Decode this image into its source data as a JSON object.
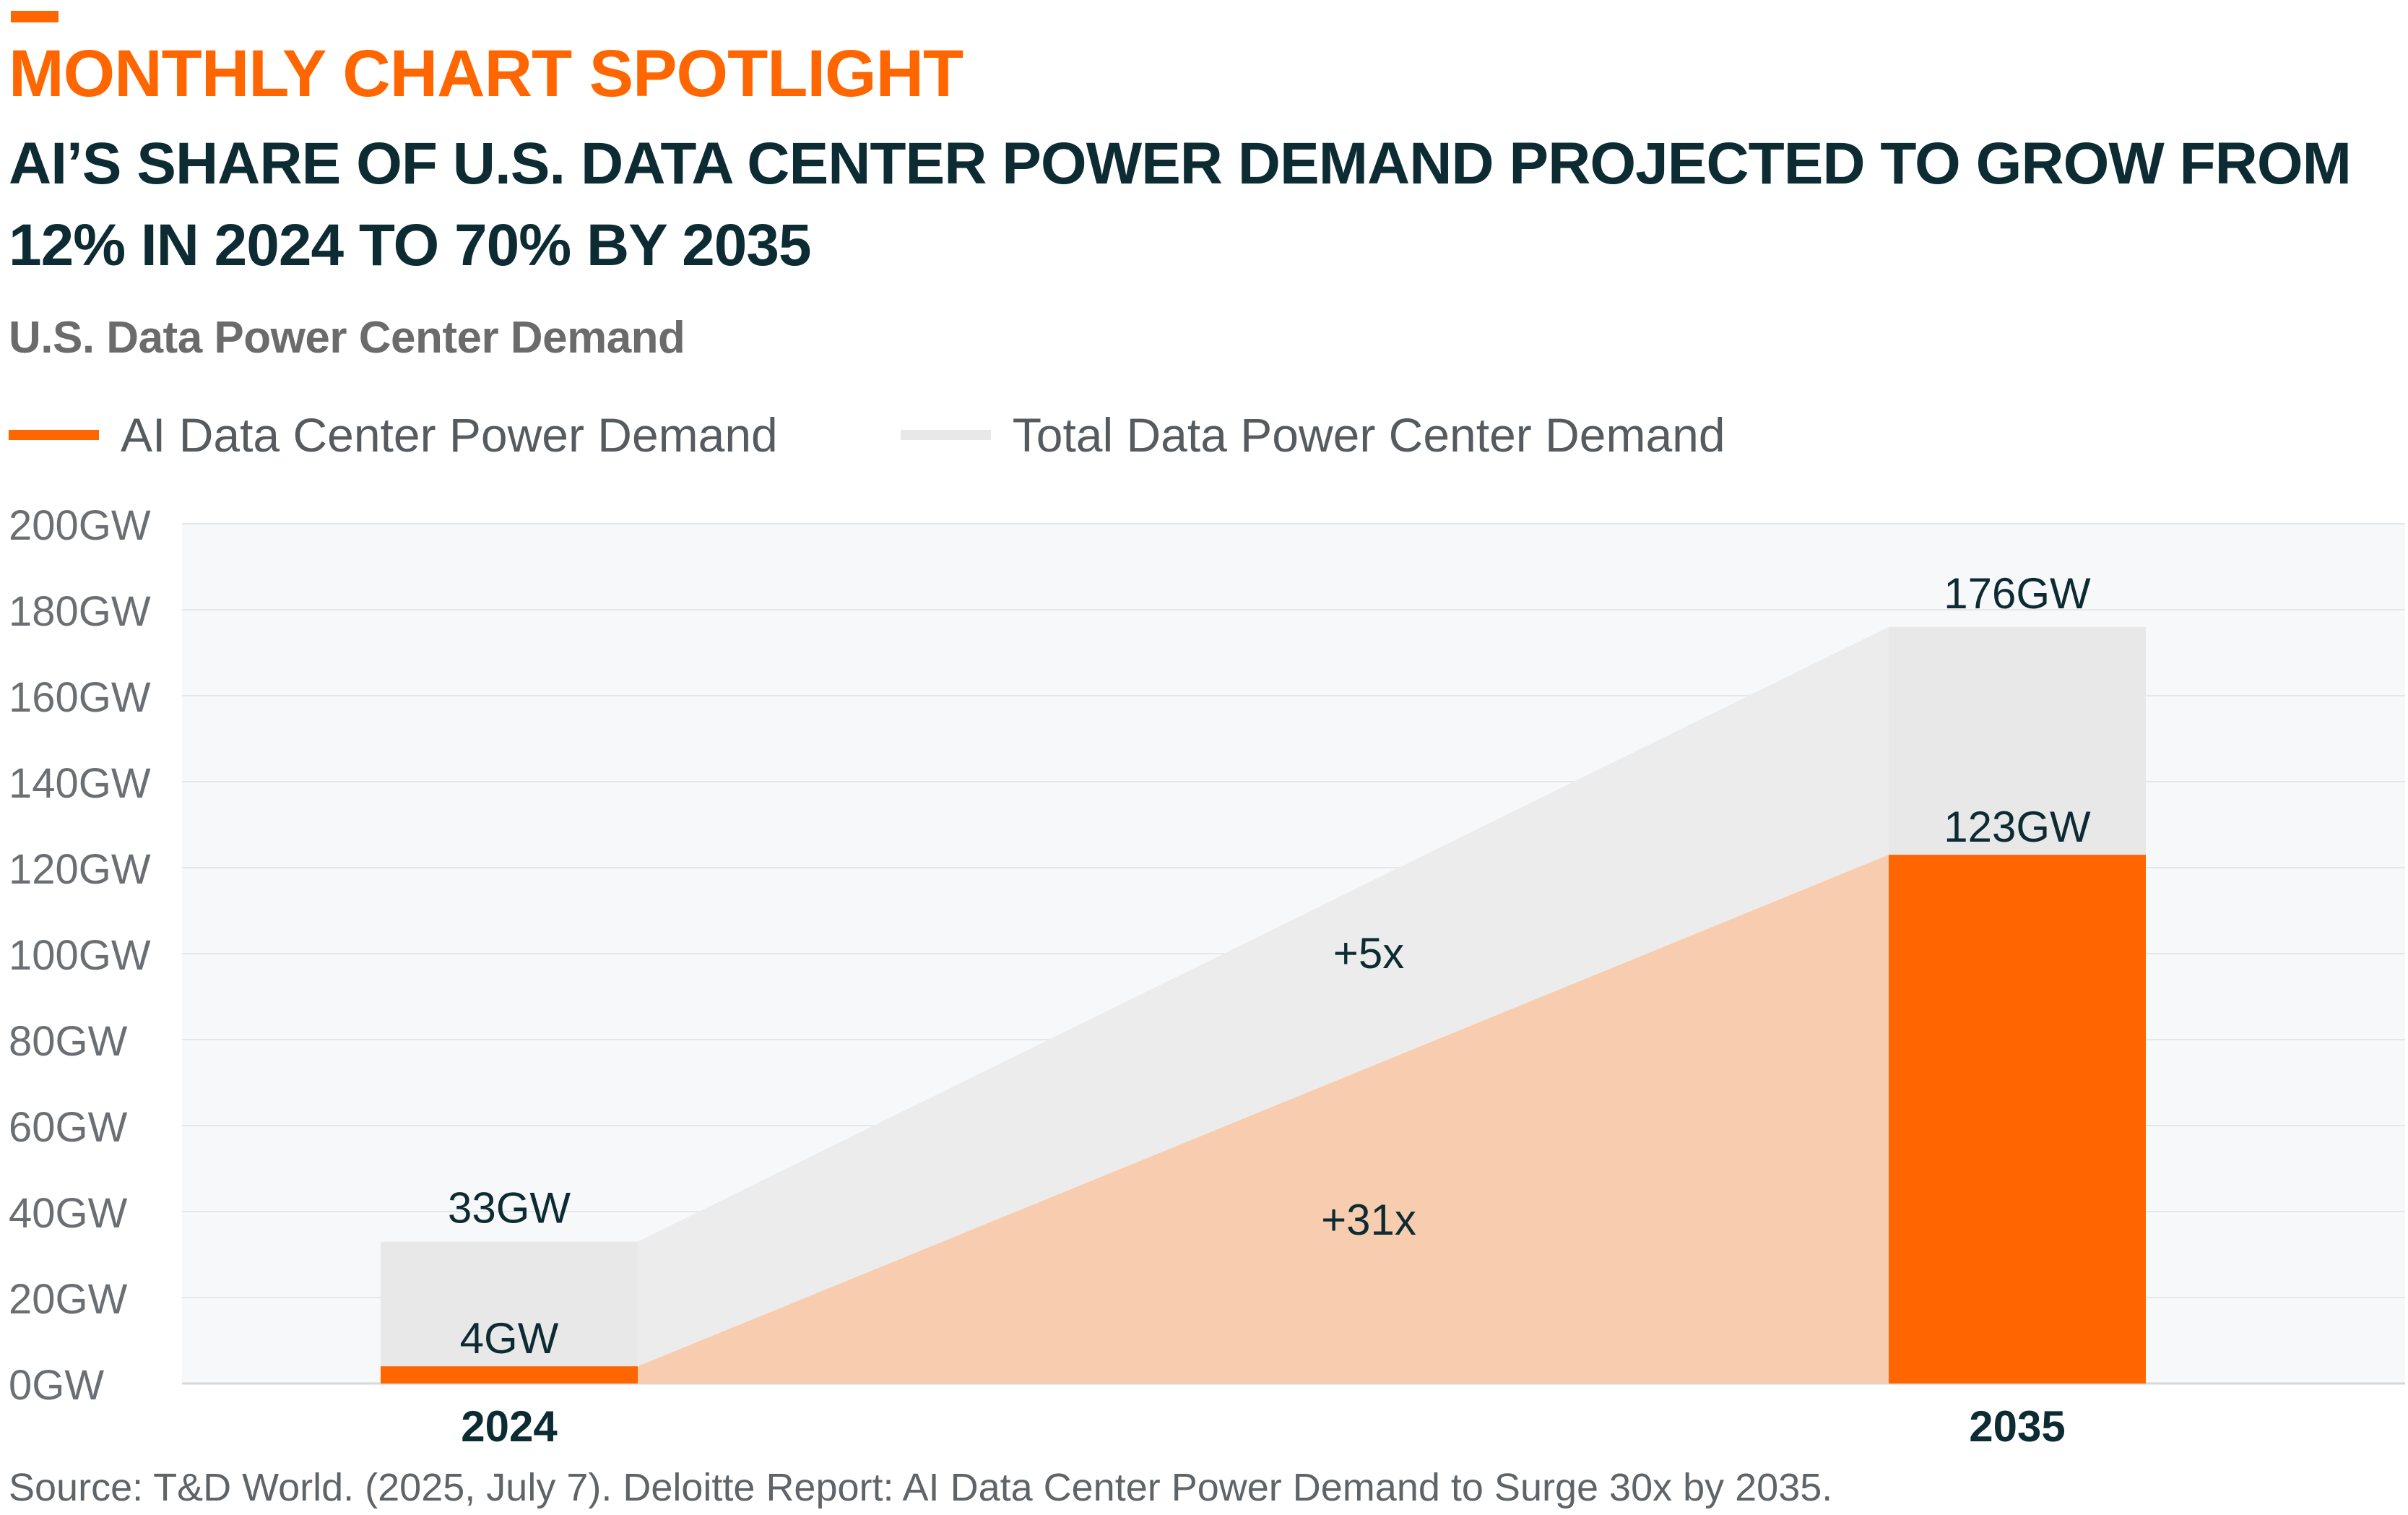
{
  "header": {
    "spotlight": "MONTHLY CHART SPOTLIGHT",
    "headline": "AI’S SHARE OF U.S. DATA CENTER POWER DEMAND PROJECTED TO GROW FROM 12% IN 2024 TO 70% BY 2035",
    "subtitle": "U.S. Data Power Center Demand"
  },
  "footer": {
    "source": "Source: T&D World. (2025, July 7). Deloitte Report: AI Data Center Power Demand to Surge 30x by 2035."
  },
  "colors": {
    "accent": "#ff6600",
    "headline": "#0d2b33",
    "total_bar": "#e8e8e8",
    "total_band": "#ececec",
    "ai_band": "#f8cdaf",
    "plot_bg": "#f7f8fa"
  },
  "chart_data": {
    "type": "bar",
    "title": "U.S. Data Power Center Demand",
    "categories": [
      "2024",
      "2035"
    ],
    "series": [
      {
        "name": "AI Data Center Power Demand",
        "values": [
          4,
          123
        ],
        "labels": [
          "4GW",
          "123GW"
        ],
        "color": "#ff6600"
      },
      {
        "name": "Total Data Power Center Demand",
        "values": [
          33,
          176
        ],
        "labels": [
          "33GW",
          "176GW"
        ],
        "color": "#e8e8e8"
      }
    ],
    "yticks": [
      "0GW",
      "20GW",
      "40GW",
      "60GW",
      "80GW",
      "100GW",
      "120GW",
      "140GW",
      "160GW",
      "180GW",
      "200GW"
    ],
    "ylim": [
      0,
      200
    ],
    "grid": true,
    "legend": "top-left",
    "annotations": [
      {
        "text": "+5x",
        "band": "total",
        "y": 100
      },
      {
        "text": "+31x",
        "band": "ai",
        "y": 38
      }
    ]
  }
}
